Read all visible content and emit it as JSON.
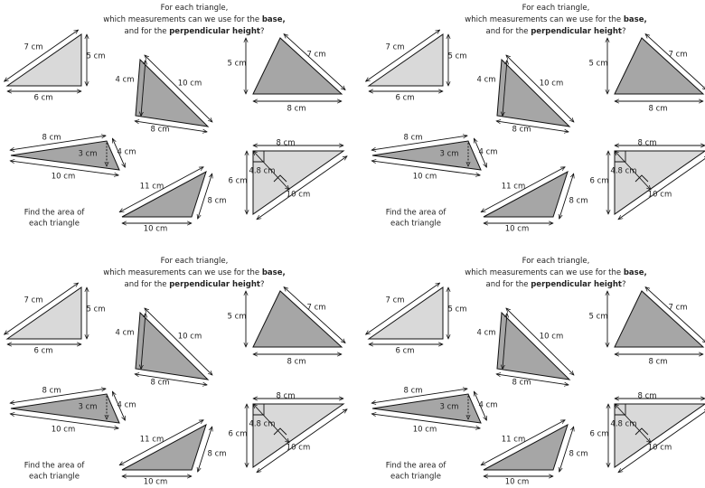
{
  "panels": [
    {
      "header": [
        [
          {
            "text": "For each triangle,"
          }
        ],
        [
          {
            "text": "which measurements can we use for the "
          },
          {
            "text": "base,",
            "bold": true
          }
        ],
        [
          {
            "text": "and for the "
          },
          {
            "text": "perpendicular height",
            "bold": true
          },
          {
            "text": "?"
          }
        ]
      ],
      "triangles": [
        {
          "labels": [
            "7 cm",
            "5 cm",
            "6 cm"
          ]
        },
        {
          "labels": [
            "4 cm",
            "10 cm",
            "8 cm"
          ]
        },
        {
          "labels": [
            "5 cm",
            "7 cm",
            "8 cm"
          ]
        },
        {
          "labels": [
            "8 cm",
            "4 cm",
            "3 cm",
            "10 cm"
          ]
        },
        {
          "labels": [
            "8 cm",
            "6 cm",
            "4.8 cm",
            "10 cm"
          ]
        },
        {
          "labels": [
            "11 cm",
            "8 cm",
            "10 cm"
          ]
        }
      ],
      "footer": [
        "Find the area of",
        "each triangle"
      ]
    },
    {
      "header": [
        [
          {
            "text": "For each triangle,"
          }
        ],
        [
          {
            "text": "which measurements can we use for the "
          },
          {
            "text": "base,",
            "bold": true
          }
        ],
        [
          {
            "text": "and for the "
          },
          {
            "text": "perpendicular height",
            "bold": true
          },
          {
            "text": "?"
          }
        ]
      ],
      "triangles": [
        {
          "labels": [
            "7 cm",
            "5 cm",
            "6 cm"
          ]
        },
        {
          "labels": [
            "4 cm",
            "10 cm",
            "8 cm"
          ]
        },
        {
          "labels": [
            "5 cm",
            "7 cm",
            "8 cm"
          ]
        },
        {
          "labels": [
            "8 cm",
            "4 cm",
            "3 cm",
            "10 cm"
          ]
        },
        {
          "labels": [
            "8 cm",
            "6 cm",
            "4.8 cm",
            "10 cm"
          ]
        },
        {
          "labels": [
            "11 cm",
            "8 cm",
            "10 cm"
          ]
        }
      ],
      "footer": [
        "Find the area of",
        "each triangle"
      ]
    },
    {
      "header": [
        [
          {
            "text": "For each triangle,"
          }
        ],
        [
          {
            "text": "which measurements can we use for the "
          },
          {
            "text": "base,",
            "bold": true
          }
        ],
        [
          {
            "text": "and for the "
          },
          {
            "text": "perpendicular height",
            "bold": true
          },
          {
            "text": "?"
          }
        ]
      ],
      "triangles": [
        {
          "labels": [
            "7 cm",
            "5 cm",
            "6 cm"
          ]
        },
        {
          "labels": [
            "4 cm",
            "10 cm",
            "8 cm"
          ]
        },
        {
          "labels": [
            "5 cm",
            "7 cm",
            "8 cm"
          ]
        },
        {
          "labels": [
            "8 cm",
            "4 cm",
            "3 cm",
            "10 cm"
          ]
        },
        {
          "labels": [
            "8 cm",
            "6 cm",
            "4.8 cm",
            "10 cm"
          ]
        },
        {
          "labels": [
            "11 cm",
            "8 cm",
            "10 cm"
          ]
        }
      ],
      "footer": [
        "Find the area of",
        "each triangle"
      ]
    },
    {
      "header": [
        [
          {
            "text": "For each triangle,"
          }
        ],
        [
          {
            "text": "which measurements can we use for the "
          },
          {
            "text": "base,",
            "bold": true
          }
        ],
        [
          {
            "text": "and for the "
          },
          {
            "text": "perpendicular height",
            "bold": true
          },
          {
            "text": "?"
          }
        ]
      ],
      "triangles": [
        {
          "labels": [
            "7 cm",
            "5 cm",
            "6 cm"
          ]
        },
        {
          "labels": [
            "4 cm",
            "10 cm",
            "8 cm"
          ]
        },
        {
          "labels": [
            "5 cm",
            "7 cm",
            "8 cm"
          ]
        },
        {
          "labels": [
            "8 cm",
            "4 cm",
            "3 cm",
            "10 cm"
          ]
        },
        {
          "labels": [
            "8 cm",
            "6 cm",
            "4.8 cm",
            "10 cm"
          ]
        },
        {
          "labels": [
            "11 cm",
            "8 cm",
            "10 cm"
          ]
        }
      ],
      "footer": [
        "Find the area of",
        "each triangle"
      ]
    }
  ]
}
